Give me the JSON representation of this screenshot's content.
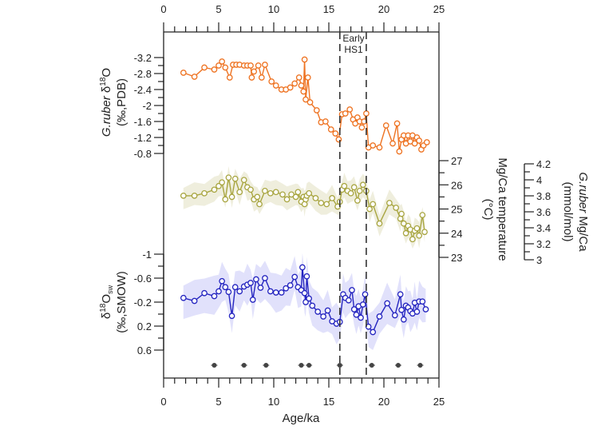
{
  "chart_data": {
    "type": "line",
    "xlabel": "Age/ka",
    "xlim": [
      0,
      25
    ],
    "x_ticks": [
      "0",
      "5",
      "10",
      "15",
      "20",
      "25"
    ],
    "annotation": {
      "line1": "Early",
      "line2": "HS1",
      "x_start": 16.0,
      "x_end": 18.4
    },
    "series": [
      {
        "name": "G.ruber δ18O",
        "axis_label_line1_italic": "G.ruber",
        "axis_label_line1_rest": " δ",
        "axis_label_sup": "18",
        "axis_label_after": "O",
        "axis_label_line2": "(‰,PDB)",
        "ylim": [
          -3.3,
          -0.8
        ],
        "reversed": true,
        "y_ticks": [
          "-3.2",
          "-2.8",
          "-2.4",
          "-2",
          "-1.6",
          "-1.2",
          "-0.8"
        ],
        "y_tick_values": [
          -3.2,
          -2.8,
          -2.4,
          -2,
          -1.6,
          -1.2,
          -0.8
        ],
        "color": "#ee7322",
        "x": [
          1.8,
          2.8,
          3.7,
          4.6,
          5.0,
          5.3,
          5.6,
          6.0,
          6.3,
          6.6,
          6.9,
          7.3,
          7.6,
          7.9,
          8.0,
          8.2,
          8.6,
          8.9,
          9.2,
          9.8,
          10.2,
          10.7,
          11.1,
          11.5,
          11.9,
          12.3,
          12.5,
          12.7,
          12.8,
          12.9,
          13.1,
          13.3,
          13.9,
          14.3,
          14.7,
          15.2,
          15.6,
          15.9,
          16.2,
          16.5,
          16.9,
          17.2,
          17.4,
          17.6,
          17.8,
          18.0,
          18.2,
          18.4,
          18.6,
          19.0,
          19.6,
          20.2,
          20.8,
          21.2,
          21.4,
          21.6,
          21.8,
          22.0,
          22.2,
          22.4,
          22.6,
          22.8,
          23.0,
          23.2,
          23.4,
          23.6,
          23.9
        ],
        "values": [
          -2.82,
          -2.72,
          -2.95,
          -2.9,
          -3.0,
          -3.1,
          -2.95,
          -2.7,
          -3.02,
          -3.02,
          -3.02,
          -3.0,
          -3.0,
          -3.0,
          -2.7,
          -2.85,
          -3.0,
          -2.7,
          -3.02,
          -2.6,
          -2.5,
          -2.4,
          -2.4,
          -2.45,
          -2.55,
          -2.7,
          -2.5,
          -2.35,
          -3.15,
          -2.15,
          -2.7,
          -2.08,
          -1.88,
          -1.58,
          -1.6,
          -1.4,
          -1.3,
          -1.15,
          -1.78,
          -1.8,
          -1.9,
          -1.65,
          -1.55,
          -1.7,
          -1.6,
          -1.45,
          -1.6,
          -1.8,
          -0.95,
          -1.0,
          -0.95,
          -1.5,
          -1.05,
          -1.55,
          -0.85,
          -1.15,
          -1.25,
          -1.05,
          -1.25,
          -1.1,
          -1.25,
          -1.05,
          -1.2,
          -1.12,
          -0.9,
          -1.0,
          -1.08
        ]
      },
      {
        "name": "Mg/Ca temperature",
        "axis_label_line1": "Mg/Ca temperature",
        "axis_label_line2": "(°C)",
        "ylim": [
          23,
          27
        ],
        "y_ticks": [
          "27",
          "26",
          "25",
          "24",
          "23"
        ],
        "y_tick_values": [
          27,
          26,
          25,
          24,
          23
        ],
        "color": "#a8a540",
        "band_color": "#ecebd7",
        "x": [
          1.8,
          2.8,
          3.7,
          4.6,
          5.0,
          5.3,
          5.6,
          5.9,
          6.2,
          6.5,
          6.9,
          7.3,
          7.6,
          7.9,
          8.2,
          8.5,
          8.7,
          9.2,
          9.7,
          10.2,
          10.8,
          11.2,
          11.6,
          12.0,
          12.2,
          12.5,
          12.7,
          12.8,
          12.9,
          13.0,
          13.2,
          13.8,
          14.3,
          14.8,
          15.3,
          15.8,
          16.0,
          16.2,
          16.4,
          16.7,
          17.0,
          17.3,
          17.6,
          17.8,
          18.1,
          18.4,
          18.7,
          19.0,
          19.6,
          20.5,
          21.1,
          21.5,
          21.6,
          21.8,
          22.0,
          22.2,
          22.4,
          22.6,
          22.8,
          23.0,
          23.2,
          23.5,
          23.7
        ],
        "values": [
          25.55,
          25.55,
          25.65,
          25.8,
          25.95,
          26.1,
          25.4,
          26.3,
          25.5,
          26.25,
          25.7,
          26.2,
          25.9,
          25.8,
          25.4,
          25.5,
          25.2,
          25.75,
          25.65,
          25.7,
          25.6,
          25.4,
          25.6,
          25.5,
          25.7,
          25.3,
          25.5,
          25.2,
          25.4,
          25.55,
          25.65,
          25.45,
          25.25,
          25.2,
          25.45,
          25.1,
          25.3,
          25.8,
          25.95,
          25.75,
          25.65,
          25.9,
          25.35,
          25.75,
          26.0,
          25.75,
          25.0,
          25.2,
          24.4,
          25.25,
          25.05,
          24.6,
          24.8,
          24.4,
          24.0,
          24.3,
          24.15,
          23.75,
          24.1,
          24.2,
          23.9,
          24.75,
          24.05
        ]
      },
      {
        "name": "δ18Osw",
        "axis_label_pre": "δ",
        "axis_label_sup": "18",
        "axis_label_mid": "O",
        "axis_label_sub": "sw",
        "axis_label_line2": "(‰,SMOW)",
        "ylim": [
          -1.0,
          0.7
        ],
        "reversed": true,
        "y_ticks": [
          "-1",
          "-0.6",
          "-0.2",
          "0.2",
          "0.6"
        ],
        "y_tick_values": [
          -1,
          -0.6,
          -0.2,
          0.2,
          0.6
        ],
        "color": "#2424c0",
        "band_color": "#dcdcfa",
        "x": [
          1.8,
          2.8,
          3.7,
          4.6,
          5.0,
          5.3,
          5.6,
          5.9,
          6.2,
          6.5,
          6.9,
          7.3,
          7.6,
          7.9,
          8.1,
          8.4,
          8.8,
          9.2,
          9.7,
          10.2,
          10.7,
          11.1,
          11.5,
          11.9,
          12.2,
          12.5,
          12.6,
          12.8,
          12.9,
          13.0,
          13.2,
          13.5,
          14.0,
          14.5,
          14.9,
          15.3,
          15.7,
          16.0,
          16.3,
          16.5,
          16.8,
          17.1,
          17.3,
          17.5,
          17.7,
          17.9,
          18.1,
          18.3,
          18.6,
          19.0,
          19.6,
          20.3,
          21.0,
          21.5,
          21.6,
          21.8,
          22.0,
          22.2,
          22.4,
          22.6,
          22.8,
          23.0,
          23.2,
          23.5,
          23.8
        ],
        "values": [
          -0.27,
          -0.22,
          -0.35,
          -0.3,
          -0.38,
          -0.55,
          -0.45,
          -0.37,
          0.03,
          -0.45,
          -0.38,
          -0.46,
          -0.49,
          -0.52,
          -0.24,
          -0.58,
          -0.44,
          -0.6,
          -0.38,
          -0.36,
          -0.36,
          -0.43,
          -0.48,
          -0.62,
          -0.45,
          -0.4,
          -0.78,
          -0.35,
          -0.2,
          -0.63,
          -0.26,
          -0.14,
          -0.04,
          0.04,
          -0.06,
          0.12,
          0.16,
          0.13,
          -0.33,
          -0.27,
          -0.23,
          -0.4,
          -0.08,
          0.01,
          -0.13,
          0.06,
          -0.16,
          -0.33,
          0.21,
          0.3,
          0.04,
          -0.18,
          0.02,
          -0.33,
          -0.07,
          0.09,
          -0.14,
          -0.11,
          -0.05,
          -0.01,
          -0.19,
          -0.04,
          -0.21,
          -0.21,
          -0.08
        ]
      },
      {
        "name": "G.ruber Mg/Ca",
        "axis_label_line1_italic": "G.ruber",
        "axis_label_line1_rest": " Mg/Ca",
        "axis_label_line2": "(mmol/mol)",
        "ylim": [
          3.0,
          4.2
        ],
        "y_ticks": [
          "4.2",
          "4",
          "3.8",
          "3.6",
          "3.4",
          "3.2",
          "3"
        ],
        "y_tick_values": [
          4.2,
          4.0,
          3.8,
          3.6,
          3.4,
          3.2,
          3.0
        ]
      },
      {
        "name": "Age control points",
        "type": "scatter",
        "color": "#444444",
        "x": [
          4.6,
          7.3,
          9.3,
          12.5,
          13.2,
          16.0,
          18.9,
          21.3,
          23.3
        ]
      }
    ]
  }
}
